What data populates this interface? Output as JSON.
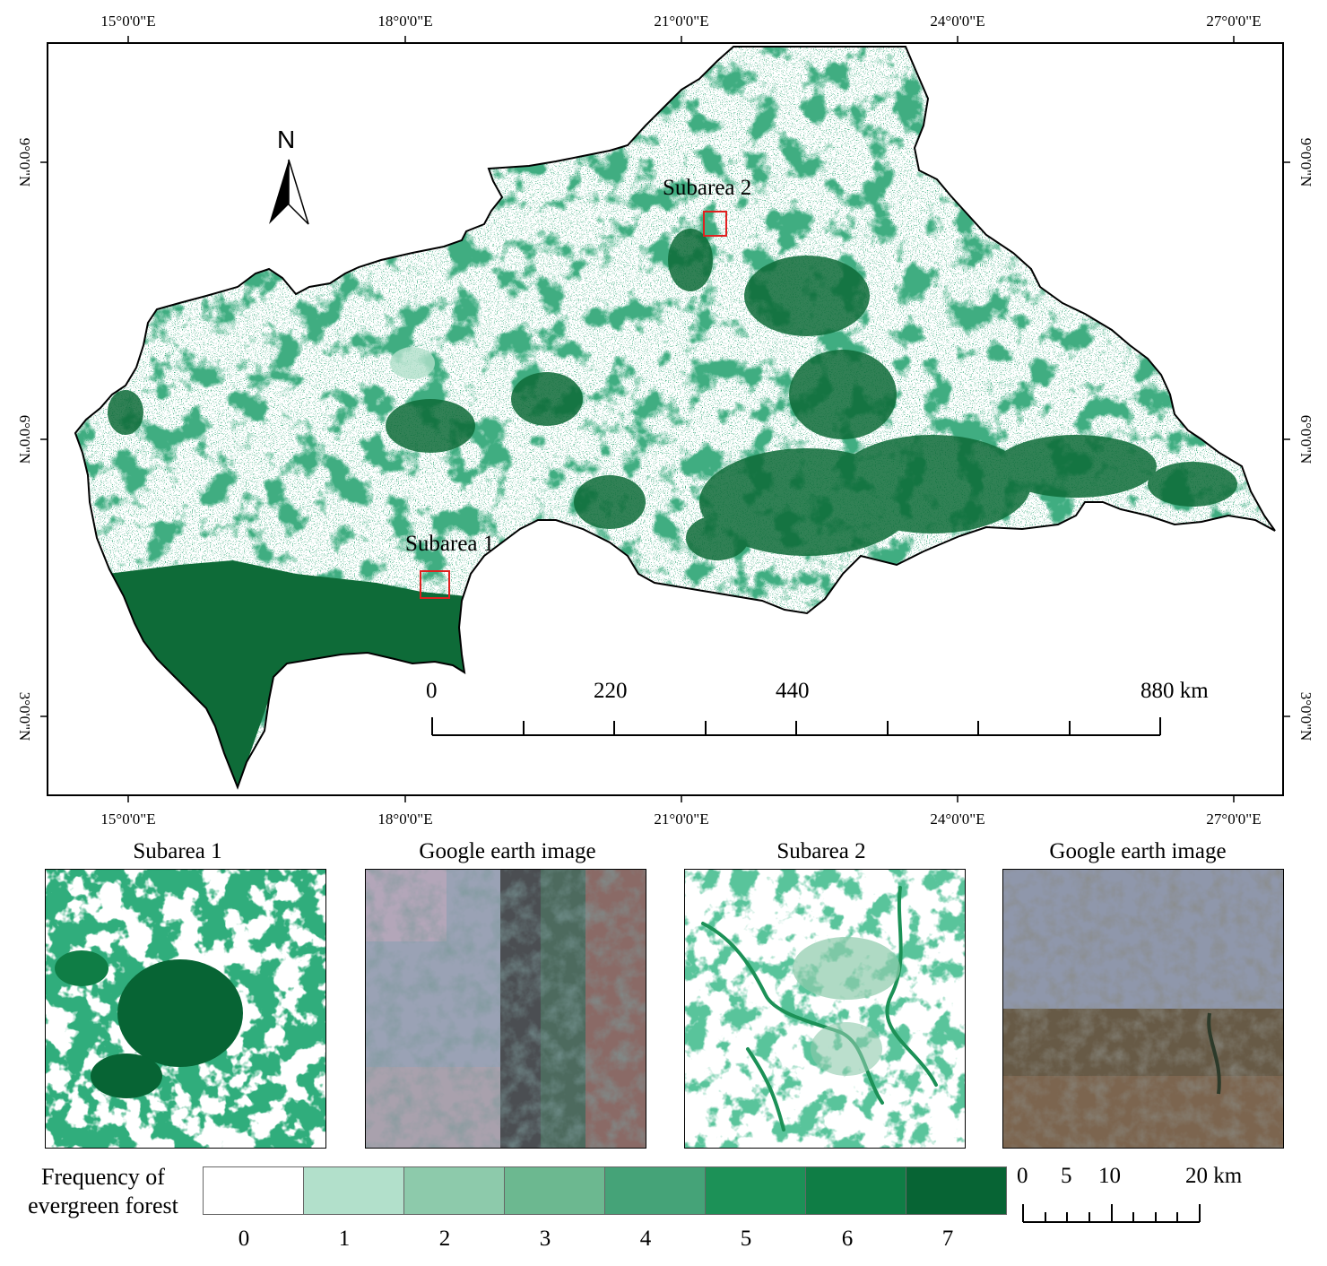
{
  "main_map": {
    "lon_labels": [
      "15°0'0\"E",
      "18°0'0\"E",
      "21°0'0\"E",
      "24°0'0\"E",
      "27°0'0\"E"
    ],
    "lat_labels": [
      "9°0'0\"N",
      "6°0'0\"N",
      "3°0'0\"N"
    ],
    "north_arrow_label": "N",
    "subarea_labels": [
      "Subarea 1",
      "Subarea 2"
    ],
    "scale_bar": {
      "labels": [
        "0",
        "220",
        "440",
        "880 km"
      ]
    }
  },
  "panels": [
    {
      "title": "Subarea 1",
      "kind": "forest-frequency"
    },
    {
      "title": "Google earth image",
      "kind": "satellite"
    },
    {
      "title": "Subarea 2",
      "kind": "forest-frequency"
    },
    {
      "title": "Google earth image",
      "kind": "satellite"
    }
  ],
  "legend": {
    "title_line1": "Frequency of",
    "title_line2": "evergreen forest",
    "classes": [
      "0",
      "1",
      "2",
      "3",
      "4",
      "5",
      "6",
      "7"
    ],
    "colors": [
      "#ffffff",
      "#b2e0cb",
      "#8dcaab",
      "#6cb890",
      "#45a378",
      "#1c9157",
      "#0f7d45",
      "#076434"
    ]
  },
  "inset_scale": {
    "labels": [
      "0",
      "5",
      "10",
      "20 km"
    ]
  },
  "colors": {
    "forest": "#0e6b38",
    "border": "#000000",
    "subarea_box": "#e0201f"
  }
}
